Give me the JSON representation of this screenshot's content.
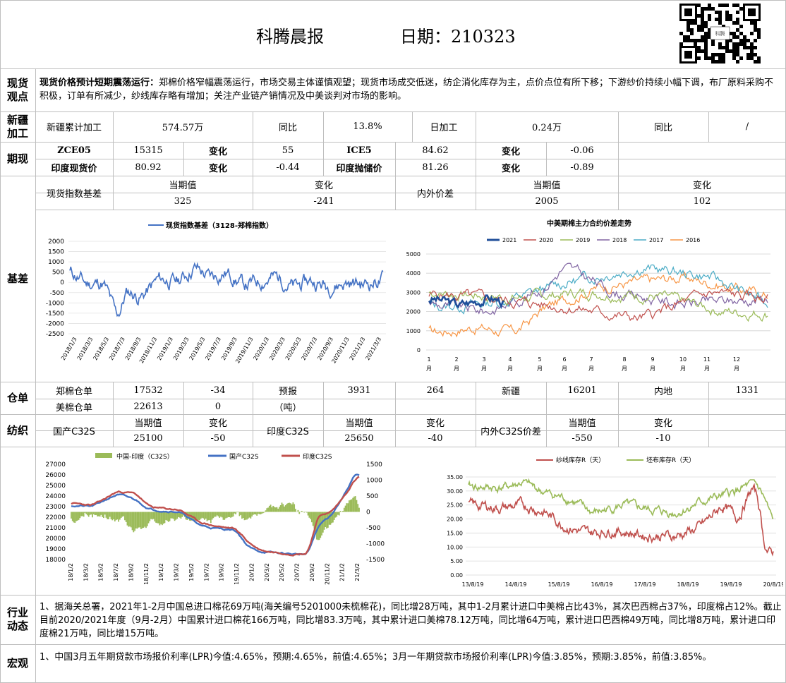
{
  "header": {
    "title": "科腾晨报",
    "date_label": "日期：210323"
  },
  "qr": {
    "caption": "科腾"
  },
  "sections": {
    "spot_view": "现货观点",
    "xinjiang": "新疆加工",
    "futures": "期现",
    "basis": "基差",
    "warehouse": "仓单",
    "textile": "纺织",
    "industry": "行业动态",
    "macro": "宏观"
  },
  "spot": {
    "headline": "现货价格预计短期震荡运行：",
    "text": "郑棉价格窄幅震荡运行，市场交易主体谨慎观望；现货市场成交低迷，纺企消化库存为主，点价点位有所下移；下游纱价持续小幅下调，布厂原料采购不积极，订单有所减少，纱线库存略有增加；关注产业链产销情况及中美谈判对市场的影响。"
  },
  "xinjiang": {
    "cumulative_label": "新疆累计加工",
    "cumulative_value": "574.57万",
    "yoy_label": "同比",
    "yoy_value": "13.8%",
    "daily_label": "日加工",
    "daily_value": "0.24万",
    "yoy2_label": "同比",
    "yoy2_value": "/"
  },
  "futures": {
    "row1": {
      "a_label": "ZCE05",
      "a_value": "15315",
      "a_chg_label": "变化",
      "a_chg": "55",
      "b_label": "ICE5",
      "b_value": "84.62",
      "b_chg_label": "变化",
      "b_chg": "-0.06"
    },
    "row2": {
      "a_label": "印度现货价",
      "a_value": "80.92",
      "a_chg_label": "变化",
      "a_chg": "-0.44",
      "b_label": "印度抛储价",
      "b_value": "81.26",
      "b_chg_label": "变化",
      "b_chg": "-0.89"
    }
  },
  "basis_table": {
    "label1": "现货指数基差",
    "cur_label": "当期值",
    "chg_label": "变化",
    "cur_value": "325",
    "chg_value": "-241",
    "label2": "内外价差",
    "cur_label2": "当期值",
    "chg_label2": "变化",
    "cur_value2": "2005",
    "chg_value2": "102"
  },
  "chart_basis": {
    "legend": "现货指数基差（3128-郑棉指数）",
    "ylabels": [
      "2000",
      "1500",
      "1000",
      "500",
      "0",
      "-500",
      "-1000",
      "-1500",
      "-2000",
      "-2500"
    ],
    "xlabels": [
      "2018/1/3",
      "2018/3/3",
      "2018/5/3",
      "2018/7/3",
      "2018/9/3",
      "2018/11/3",
      "2019/1/3",
      "2019/3/3",
      "2019/5/3",
      "2019/7/3",
      "2019/9/3",
      "2019/11/3",
      "2020/1/3",
      "2020/3/3",
      "2020/5/3",
      "2020/7/3",
      "2020/9/3",
      "2020/11/3",
      "2021/1/3",
      "2021/3/3"
    ]
  },
  "chart_spread": {
    "title": "中美期棉主力合约价差走势",
    "legend": [
      "2021",
      "2020",
      "2019",
      "2018",
      "2017",
      "2016"
    ],
    "ylabels": [
      "5000",
      "4000",
      "3000",
      "2000",
      "1000",
      "0"
    ],
    "xlabels": [
      "1",
      "2",
      "3",
      "4",
      "5",
      "6",
      "7",
      "8",
      "9",
      "10",
      "11",
      "12"
    ],
    "month": "月"
  },
  "warehouse": {
    "zc_label": "郑棉仓单",
    "zc_value": "17532",
    "zc_chg": "-34",
    "forecast_label": "预报",
    "forecast_value": "3931",
    "forecast_chg": "264",
    "xj_label": "新疆",
    "xj_value": "16201",
    "nd_label": "内地",
    "nd_value": "1331",
    "us_label": "美棉仓单",
    "us_value": "22613",
    "us_chg": "0",
    "unit": "（吨）"
  },
  "textile": {
    "dom_label": "国产C32S",
    "cur_label": "当期值",
    "chg_label": "变化",
    "dom_value": "25100",
    "dom_chg": "-50",
    "ind_label": "印度C32S",
    "cur_label2": "当期值",
    "chg_label2": "变化",
    "ind_value": "25650",
    "ind_chg": "-40",
    "spread_label": "内外C32S价差",
    "cur_label3": "当期值",
    "chg_label3": "变化",
    "spread_value": "-550",
    "spread_chg": "-10"
  },
  "chart_yarn": {
    "legend": [
      "中国-印度（C32S）",
      "国产C32S",
      "印度C32S"
    ],
    "ylabels": [
      "27000",
      "26000",
      "25000",
      "24000",
      "23000",
      "22000",
      "21000",
      "20000",
      "19000",
      "18000"
    ],
    "y2labels": [
      "1500",
      "1000",
      "500",
      "0",
      "-500",
      "-1000",
      "-1500"
    ],
    "xlabels": [
      "18/1/2",
      "18/3/2",
      "18/5/2",
      "18/7/2",
      "18/9/2",
      "18/11/2",
      "19/1/2",
      "19/3/2",
      "19/5/2",
      "19/7/2",
      "19/9/2",
      "19/11/2",
      "20/1/2",
      "20/3/2",
      "20/5/2",
      "20/7/2",
      "20/9/2",
      "20/11/2",
      "21/1/2",
      "21/3/2"
    ]
  },
  "chart_stock": {
    "legend": [
      "纱线库存R（天）",
      "坯布库存R（天）"
    ],
    "ylabels": [
      "35.00",
      "30.00",
      "25.00",
      "20.00",
      "15.00",
      "10.00",
      "5.00",
      "0.00"
    ],
    "xlabels": [
      "13/8/19",
      "14/8/19",
      "15/8/19",
      "16/8/19",
      "17/8/19",
      "18/8/19",
      "19/8/19",
      "20/8/19"
    ]
  },
  "industry": {
    "text": "1、据海关总署，2021年1-2月中国总进口棉花69万吨(海关编号5201000未梳棉花)，同比增28万吨，其中1-2月累计进口中美棉占比43%，其次巴西棉占37%，印度棉占12%。截止目前2020/2021年度（9月-2月）中国累计进口棉花166万吨，同比增83.3万吨，其中累计进口美棉78.12万吨，同比增64万吨，累计进口巴西棉49万吨，同比增8万吨，累计进口印度棉21万吨，同比增15万吨。"
  },
  "macro": {
    "text": "1、中国3月五年期贷款市场报价利率(LPR)今值:4.65%，预期:4.65%，前值:4.65%；3月一年期贷款市场报价利率(LPR)今值:3.85%，预期:3.85%，前值:3.85%。"
  },
  "colors": {
    "grid": "#bfbfbf",
    "blue": "#4472c4",
    "red": "#c0504d",
    "green": "#9bbb59",
    "purple": "#8064a2",
    "teal": "#4bacc6",
    "orange": "#f79646",
    "navy": "#1f4e99"
  }
}
